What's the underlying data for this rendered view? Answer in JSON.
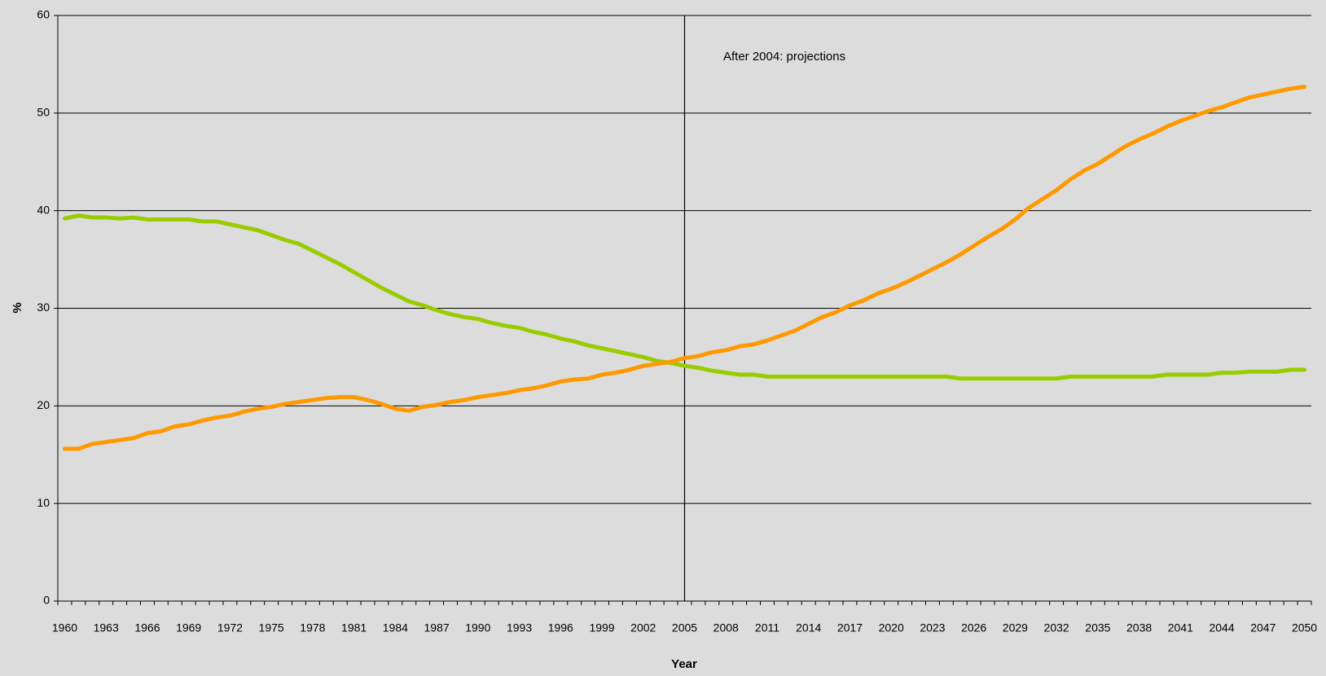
{
  "chart_data": {
    "type": "line",
    "x_label": "Year",
    "y_label": "%",
    "annotation": "After 2004: projections",
    "projection_line": 2005,
    "categories": [
      "1960",
      null,
      null,
      "1963",
      null,
      null,
      "1966",
      null,
      null,
      "1969",
      null,
      null,
      "1972",
      null,
      null,
      "1975",
      null,
      null,
      "1978",
      null,
      null,
      "1981",
      null,
      null,
      "1984",
      null,
      null,
      "1987",
      null,
      null,
      "1990",
      null,
      null,
      "1993",
      null,
      null,
      "1996",
      null,
      null,
      "1999",
      null,
      null,
      "2002",
      null,
      null,
      "2005",
      null,
      null,
      "2008",
      null,
      null,
      "2011",
      null,
      null,
      "2014",
      null,
      null,
      "2017",
      null,
      null,
      "2020",
      null,
      null,
      "2023",
      null,
      null,
      "2026",
      null,
      null,
      "2029",
      null,
      null,
      "2032",
      null,
      null,
      "2035",
      null,
      null,
      "2038",
      null,
      null,
      "2041",
      null,
      null,
      "2044",
      null,
      null,
      "2047",
      null,
      null,
      "2050"
    ],
    "series": [
      {
        "color": "#99cc00",
        "values": [
          39.2,
          39.5,
          39.3,
          39.3,
          39.2,
          39.3,
          39.1,
          39.1,
          39.1,
          39.1,
          38.9,
          38.9,
          38.6,
          38.3,
          38.0,
          37.5,
          37.0,
          36.6,
          35.9,
          35.2,
          34.5,
          33.7,
          32.9,
          32.1,
          31.4,
          30.7,
          30.3,
          29.8,
          29.4,
          29.1,
          28.9,
          28.5,
          28.2,
          28.0,
          27.6,
          27.3,
          26.9,
          26.6,
          26.2,
          25.9,
          25.6,
          25.3,
          25.0,
          24.6,
          24.4,
          24.1,
          23.9,
          23.6,
          23.4,
          23.2,
          23.2,
          23.0,
          23.0,
          23.0,
          23.0,
          23.0,
          23.0,
          23.0,
          23.0,
          23.0,
          23.0,
          23.0,
          23.0,
          23.0,
          23.0,
          22.8,
          22.8,
          22.8,
          22.8,
          22.8,
          22.8,
          22.8,
          22.8,
          23.0,
          23.0,
          23.0,
          23.0,
          23.0,
          23.0,
          23.0,
          23.2,
          23.2,
          23.2,
          23.2,
          23.4,
          23.4,
          23.5,
          23.5,
          23.5,
          23.7,
          23.7
        ]
      },
      {
        "color": "#ff9900",
        "values": [
          15.6,
          15.6,
          16.1,
          16.3,
          16.5,
          16.7,
          17.2,
          17.4,
          17.9,
          18.1,
          18.5,
          18.8,
          19.0,
          19.4,
          19.7,
          19.9,
          20.2,
          20.4,
          20.6,
          20.8,
          20.9,
          20.9,
          20.6,
          20.2,
          19.7,
          19.5,
          19.9,
          20.1,
          20.4,
          20.6,
          20.9,
          21.1,
          21.3,
          21.6,
          21.8,
          22.1,
          22.5,
          22.7,
          22.8,
          23.2,
          23.4,
          23.7,
          24.1,
          24.3,
          24.5,
          24.9,
          25.1,
          25.5,
          25.7,
          26.1,
          26.3,
          26.7,
          27.2,
          27.7,
          28.4,
          29.1,
          29.6,
          30.3,
          30.8,
          31.5,
          32.0,
          32.6,
          33.3,
          34.0,
          34.7,
          35.5,
          36.4,
          37.3,
          38.1,
          39.1,
          40.3,
          41.2,
          42.1,
          43.2,
          44.1,
          44.8,
          45.7,
          46.6,
          47.3,
          47.9,
          48.6,
          49.2,
          49.7,
          50.2,
          50.6,
          51.1,
          51.6,
          51.9,
          52.2,
          52.5,
          52.7
        ]
      }
    ],
    "ylim": [
      0,
      60
    ],
    "yticks": [
      0,
      10,
      20,
      30,
      40,
      50,
      60
    ],
    "grid": true
  }
}
